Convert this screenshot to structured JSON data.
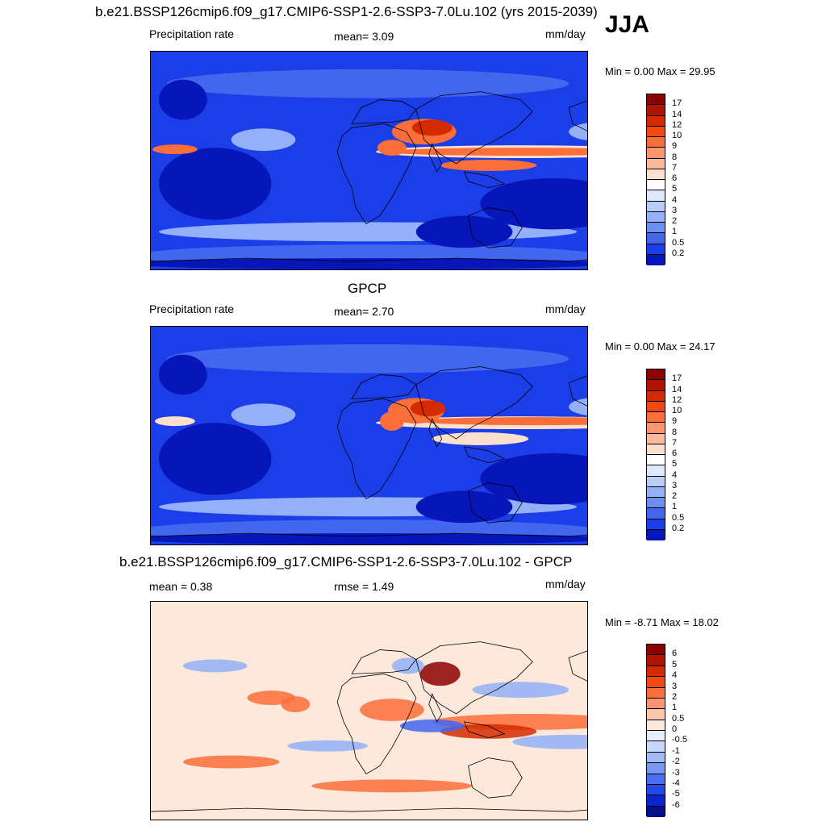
{
  "title": "b.e21.BSSP126cmip6.f09_g17.CMIP6-SSP1-2.6-SSP3-7.0Lu.102 (yrs 2015-2039)",
  "season": "JJA",
  "panels": [
    {
      "heading": "",
      "left_label": "Precipitation rate",
      "center_label": "mean=   3.09",
      "right_label": "mm/day",
      "minmax": "Min =   0.00 Max =  29.95",
      "field": "model",
      "colorbar": {
        "labels": [
          "17",
          "14",
          "12",
          "10",
          "9",
          "8",
          "7",
          "6",
          "5",
          "4",
          "3",
          "2",
          "1",
          "0.5",
          "0.2"
        ],
        "colors": [
          "#8b0000",
          "#b01400",
          "#d42a00",
          "#f04a10",
          "#fa6e3a",
          "#fc9570",
          "#fdb99c",
          "#fde0cc",
          "#ffffff",
          "#dde8fd",
          "#b9cdfb",
          "#93b0f8",
          "#6c8ff3",
          "#4266ee",
          "#1b3ee8",
          "#0716b8"
        ]
      }
    },
    {
      "heading": "GPCP",
      "left_label": "Precipitation rate",
      "center_label": "mean=   2.70",
      "right_label": "mm/day",
      "minmax": "Min =   0.00 Max =  24.17",
      "field": "obs",
      "colorbar": {
        "labels": [
          "17",
          "14",
          "12",
          "10",
          "9",
          "8",
          "7",
          "6",
          "5",
          "4",
          "3",
          "2",
          "1",
          "0.5",
          "0.2"
        ],
        "colors": [
          "#8b0000",
          "#b01400",
          "#d42a00",
          "#f04a10",
          "#fa6e3a",
          "#fc9570",
          "#fdb99c",
          "#fde0cc",
          "#ffffff",
          "#dde8fd",
          "#b9cdfb",
          "#93b0f8",
          "#6c8ff3",
          "#4266ee",
          "#1b3ee8",
          "#0716b8"
        ]
      }
    },
    {
      "heading": "b.e21.BSSP126cmip6.f09_g17.CMIP6-SSP1-2.6-SSP3-7.0Lu.102 - GPCP",
      "left_label": "mean =   0.38",
      "center_label": "rmse =   1.49",
      "right_label": "mm/day",
      "minmax": "Min =  -8.71 Max =  18.02",
      "field": "diff",
      "colorbar": {
        "labels": [
          "6",
          "5",
          "4",
          "3",
          "2",
          "1",
          "0.5",
          "0",
          "-0.5",
          "-1",
          "-2",
          "-3",
          "-4",
          "-5",
          "-6"
        ],
        "colors": [
          "#8b0000",
          "#b01400",
          "#d42a00",
          "#f04a10",
          "#fa6e3a",
          "#fc9570",
          "#fdc7ad",
          "#fde8dc",
          "#e6eefe",
          "#c8d8fc",
          "#a2bcf9",
          "#7898f4",
          "#4a6ef0",
          "#2447ea",
          "#0d23cf",
          "#050f8a"
        ]
      }
    }
  ],
  "map_colors": {
    "deep_blue": "#0716b8",
    "blue": "#1b3ee8",
    "mid_blue": "#4266ee",
    "light_blue": "#93b0f8",
    "pale": "#fde0cc",
    "orange": "#fa6e3a",
    "red": "#d42a00",
    "dark_red": "#8b0000",
    "diff_bg": "#fde8dc",
    "coast": "#000000"
  }
}
